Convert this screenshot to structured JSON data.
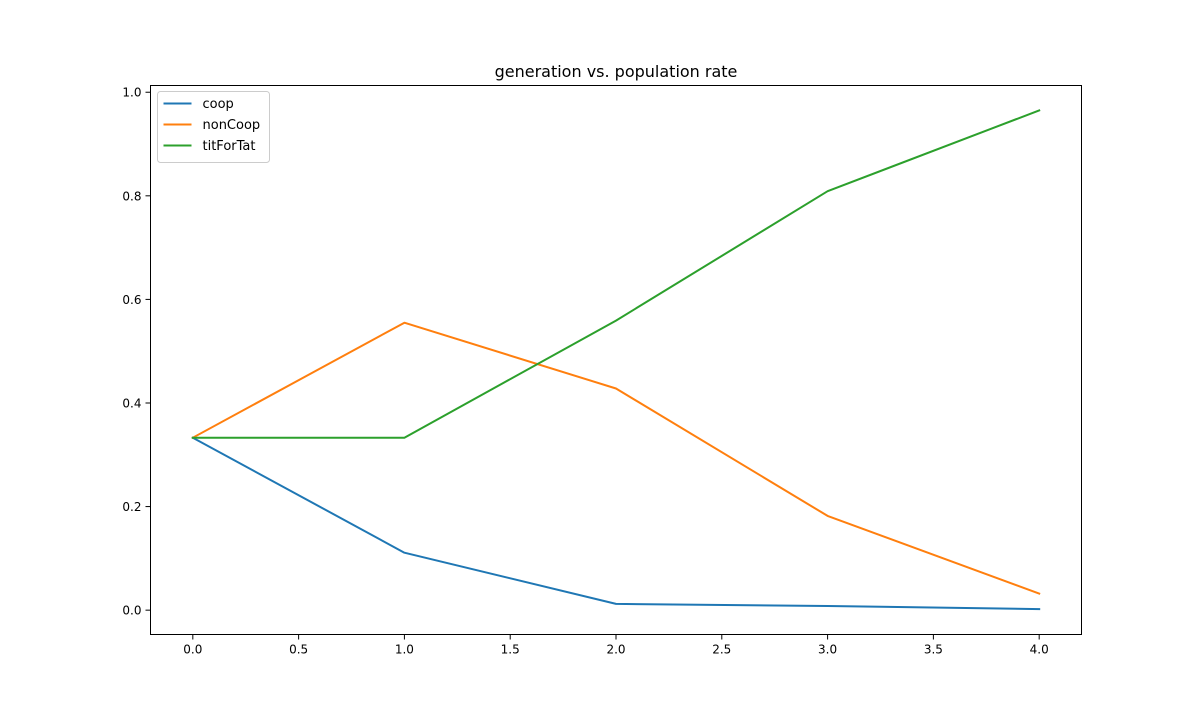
{
  "chart_data": {
    "type": "line",
    "title": "generation vs. population rate",
    "xlabel": "",
    "ylabel": "",
    "x": [
      0,
      1,
      2,
      3,
      4
    ],
    "xlim": [
      -0.2,
      4.2
    ],
    "ylim": [
      -0.047,
      1.013
    ],
    "xticks": [
      0.0,
      0.5,
      1.0,
      1.5,
      2.0,
      2.5,
      3.0,
      3.5,
      4.0
    ],
    "xtick_labels": [
      "0.0",
      "0.5",
      "1.0",
      "1.5",
      "2.0",
      "2.5",
      "3.0",
      "3.5",
      "4.0"
    ],
    "yticks": [
      0.0,
      0.2,
      0.4,
      0.6,
      0.8,
      1.0
    ],
    "ytick_labels": [
      "0.0",
      "0.2",
      "0.4",
      "0.6",
      "0.8",
      "1.0"
    ],
    "grid": false,
    "legend_position": "top-left",
    "series": [
      {
        "name": "coop",
        "color": "#1f77b4",
        "values": [
          0.333,
          0.111,
          0.012,
          0.008,
          0.002
        ]
      },
      {
        "name": "nonCoop",
        "color": "#ff7f0e",
        "values": [
          0.333,
          0.555,
          0.428,
          0.182,
          0.032
        ]
      },
      {
        "name": "titForTat",
        "color": "#2ca02c",
        "values": [
          0.333,
          0.333,
          0.559,
          0.809,
          0.965
        ]
      }
    ]
  }
}
